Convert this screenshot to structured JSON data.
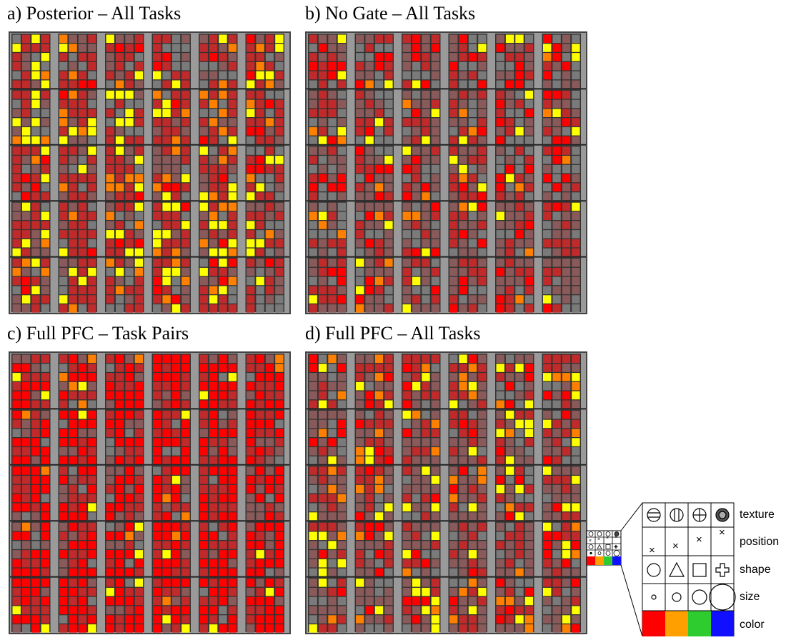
{
  "panels": [
    {
      "id": "a",
      "title": "a) Posterior – All Tasks",
      "scheme": "posterior"
    },
    {
      "id": "b",
      "title": "b) No Gate – All Tasks",
      "scheme": "nogate"
    },
    {
      "id": "c",
      "title": "c) Full PFC – Task Pairs",
      "scheme": "pairs"
    },
    {
      "id": "d",
      "title": "d) Full PFC – All Tasks",
      "scheme": "fullall"
    }
  ],
  "legend": {
    "rows": [
      "texture",
      "position",
      "shape",
      "size",
      "color"
    ],
    "colors": [
      "#ff0000",
      "#ffa000",
      "#2ecc2e",
      "#1010ff"
    ]
  },
  "cell_colors": {
    "red": "#ff0000",
    "darkred": "#c02a2a",
    "mauve": "#8a5a5a",
    "gray": "#7a7a7a",
    "orange": "#ff8000",
    "yellow": "#ffff00",
    "lightorange": "#ffa500"
  }
}
